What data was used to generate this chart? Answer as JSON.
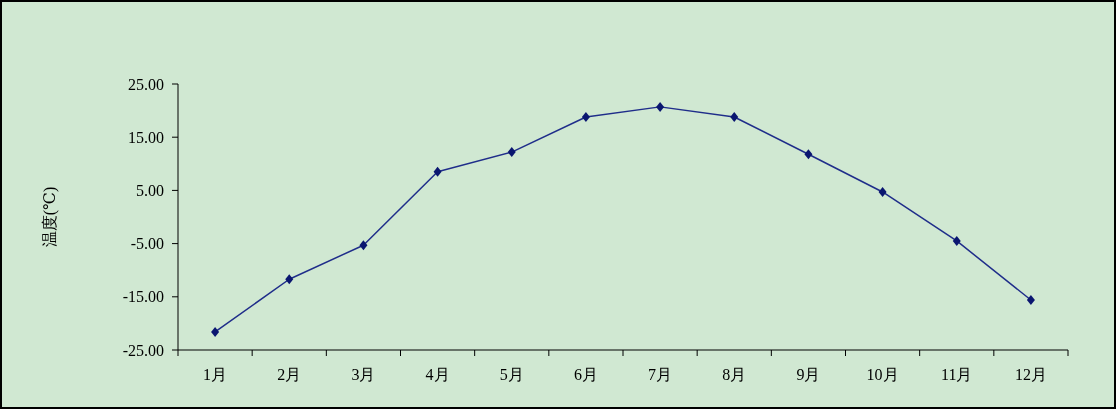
{
  "chart_data": {
    "type": "line",
    "ylabel": "温度(℃)",
    "categories": [
      "1月",
      "2月",
      "3月",
      "4月",
      "5月",
      "6月",
      "7月",
      "8月",
      "9月",
      "10月",
      "11月",
      "12月"
    ],
    "series": [
      {
        "color": "#1f2d8a",
        "values": [
          -21.6,
          -11.7,
          -5.3,
          8.5,
          12.2,
          18.8,
          20.7,
          18.8,
          11.8,
          4.7,
          -4.5,
          -15.6
        ]
      }
    ],
    "ylim": [
      -25,
      25
    ],
    "yticks": [
      {
        "value": -25,
        "label": "-25.00"
      },
      {
        "value": -15,
        "label": "-15.00"
      },
      {
        "value": -5,
        "label": "-5.00"
      },
      {
        "value": 5,
        "label": "5.00"
      },
      {
        "value": 15,
        "label": "15.00"
      },
      {
        "value": 25,
        "label": "25.00"
      }
    ],
    "marker": "diamond",
    "line_style": "solid"
  }
}
